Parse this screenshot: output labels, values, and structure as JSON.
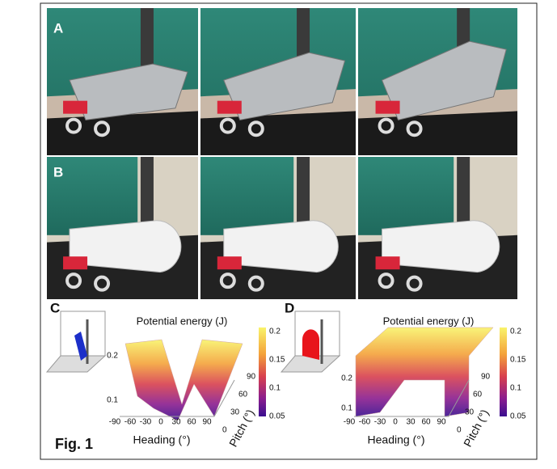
{
  "figure": {
    "label": "Fig. 1",
    "rows": [
      {
        "label": "A"
      },
      {
        "label": "B"
      }
    ],
    "plots": [
      {
        "label": "C",
        "title": "Potential energy (J)",
        "colorbar_ticks": [
          0.2,
          0.15,
          0.1,
          0.05
        ],
        "z_ticks": [
          0.2,
          0.1
        ],
        "heading_ticks": [
          -90,
          -60,
          -30,
          0,
          30,
          60,
          90
        ],
        "pitch_ticks": [
          0,
          30,
          60,
          90
        ],
        "heading_label": "Heading (°)",
        "pitch_label": "Pitch (°)"
      },
      {
        "label": "D",
        "title": "Potential energy (J)",
        "colorbar_ticks": [
          0.2,
          0.15,
          0.1,
          0.05
        ],
        "z_ticks": [
          0.2,
          0.1
        ],
        "heading_ticks": [
          -90,
          -60,
          -30,
          0,
          30,
          60,
          90
        ],
        "pitch_ticks": [
          0,
          30,
          60,
          90
        ],
        "heading_label": "Heading (°)",
        "pitch_label": "Pitch (°)"
      }
    ]
  }
}
